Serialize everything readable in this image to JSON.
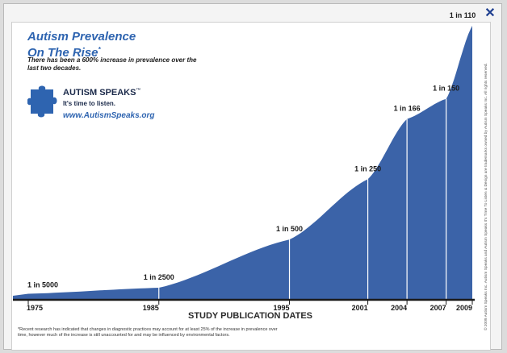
{
  "window": {
    "close_label": "✕"
  },
  "header": {
    "title_line1": "Autism Prevalence",
    "title_line2": "On The Rise",
    "title_mark": "*",
    "subtitle": "There has been a 600% increase in prevalence over the last two decades."
  },
  "brand": {
    "name": "AUTISM SPEAKS",
    "trademark": "™",
    "tagline": "It's time to listen.",
    "url": "www.AutismSpeaks.org",
    "logo_icon": "puzzle-piece-icon",
    "color": "#2e64b0"
  },
  "chart_data": {
    "type": "area",
    "title": "Autism Prevalence On The Rise",
    "xlabel": "STUDY PUBLICATION DATES",
    "ylabel": "",
    "x": [
      1975,
      1985,
      1995,
      2001,
      2004,
      2007,
      2009
    ],
    "labels": [
      "1 in 5000",
      "1 in 2500",
      "1 in 500",
      "1 in 250",
      "1 in 166",
      "1 in 150",
      "1 in 110"
    ],
    "values": [
      0.0002,
      0.0004,
      0.002,
      0.004,
      0.006,
      0.006667,
      0.009091
    ],
    "xlim": [
      1975,
      2009
    ],
    "fill_color": "#3b63a8",
    "grid": false
  },
  "footnote": "*Recent research has indicated that changes in diagnostic practices may account for at least 25% of the increase in prevalence over time, however much of the increase is still unaccounted for and may be influenced by environmental factors.",
  "copyright": "© 2009 Autism Speaks Inc. Autism Speaks and Autism Speaks It's Time To Listen & Design are trademarks owned by Autism Speaks Inc. All rights reserved."
}
